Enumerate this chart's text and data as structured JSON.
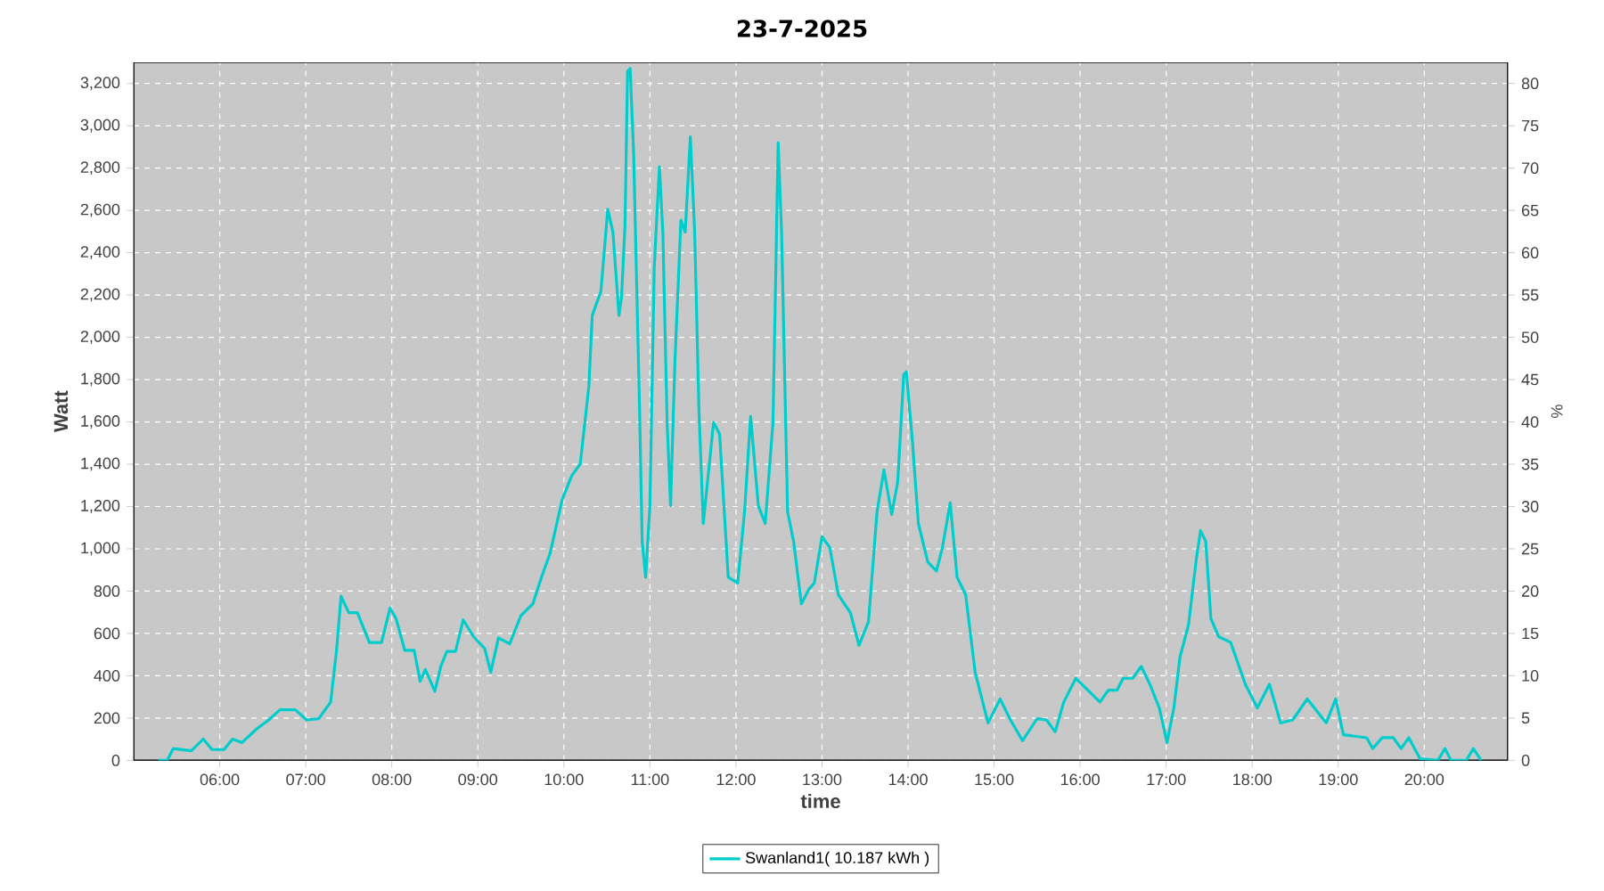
{
  "chart_data": {
    "type": "line",
    "title": "23-7-2025",
    "xlabel": "time",
    "ylabel": "Watt",
    "y2label": "%",
    "xlim": [
      5.0,
      20.97
    ],
    "ylim": [
      0,
      3300
    ],
    "y2lim": [
      0,
      82.5
    ],
    "xticks": [
      {
        "value": 6,
        "label": "06:00"
      },
      {
        "value": 7,
        "label": "07:00"
      },
      {
        "value": 8,
        "label": "08:00"
      },
      {
        "value": 9,
        "label": "09:00"
      },
      {
        "value": 10,
        "label": "10:00"
      },
      {
        "value": 11,
        "label": "11:00"
      },
      {
        "value": 12,
        "label": "12:00"
      },
      {
        "value": 13,
        "label": "13:00"
      },
      {
        "value": 14,
        "label": "14:00"
      },
      {
        "value": 15,
        "label": "15:00"
      },
      {
        "value": 16,
        "label": "16:00"
      },
      {
        "value": 17,
        "label": "17:00"
      },
      {
        "value": 18,
        "label": "18:00"
      },
      {
        "value": 19,
        "label": "19:00"
      },
      {
        "value": 20,
        "label": "20:00"
      }
    ],
    "yticks": [
      0,
      200,
      400,
      600,
      800,
      {
        "value": 1000,
        "label": "1,000"
      },
      {
        "value": 1200,
        "label": "1,200"
      },
      {
        "value": 1400,
        "label": "1,400"
      },
      {
        "value": 1600,
        "label": "1,600"
      },
      {
        "value": 1800,
        "label": "1,800"
      },
      {
        "value": 2000,
        "label": "2,000"
      },
      {
        "value": 2200,
        "label": "2,200"
      },
      {
        "value": 2400,
        "label": "2,400"
      },
      {
        "value": 2600,
        "label": "2,600"
      },
      {
        "value": 2800,
        "label": "2,800"
      },
      {
        "value": 3000,
        "label": "3,000"
      },
      {
        "value": 3200,
        "label": "3,200"
      }
    ],
    "y2ticks": [
      0,
      5,
      10,
      15,
      20,
      25,
      30,
      35,
      40,
      45,
      50,
      55,
      60,
      65,
      70,
      75,
      80
    ],
    "grid": true,
    "legend": "bottom",
    "x": [
      5.29,
      5.39,
      5.46,
      5.67,
      5.81,
      5.91,
      6.05,
      6.15,
      6.26,
      6.43,
      6.57,
      6.7,
      6.88,
      7.01,
      7.15,
      7.29,
      7.36,
      7.41,
      7.5,
      7.6,
      7.74,
      7.88,
      7.98,
      8.05,
      8.15,
      8.26,
      8.33,
      8.39,
      8.5,
      8.57,
      8.64,
      8.74,
      8.83,
      8.95,
      9.08,
      9.15,
      9.24,
      9.37,
      9.5,
      9.64,
      9.74,
      9.84,
      9.98,
      10.09,
      10.19,
      10.29,
      10.33,
      10.43,
      10.51,
      10.57,
      10.64,
      10.67,
      10.71,
      10.74,
      10.77,
      10.81,
      10.88,
      10.91,
      10.95,
      11.0,
      11.05,
      11.11,
      11.15,
      11.2,
      11.24,
      11.29,
      11.36,
      11.41,
      11.47,
      11.52,
      11.57,
      11.62,
      11.74,
      11.81,
      11.91,
      12.02,
      12.1,
      12.17,
      12.26,
      12.34,
      12.43,
      12.47,
      12.49,
      12.53,
      12.6,
      12.67,
      12.76,
      12.85,
      12.91,
      13.0,
      13.09,
      13.19,
      13.33,
      13.43,
      13.54,
      13.64,
      13.72,
      13.81,
      13.88,
      13.95,
      13.98,
      14.05,
      14.12,
      14.23,
      14.33,
      14.4,
      14.49,
      14.57,
      14.67,
      14.78,
      14.93,
      15.07,
      15.19,
      15.33,
      15.5,
      15.61,
      15.71,
      15.81,
      15.95,
      16.23,
      16.33,
      16.43,
      16.5,
      16.61,
      16.71,
      16.81,
      16.92,
      17.01,
      17.09,
      17.16,
      17.26,
      17.35,
      17.4,
      17.46,
      17.52,
      17.61,
      17.75,
      17.92,
      18.06,
      18.2,
      18.33,
      18.47,
      18.64,
      18.86,
      18.97,
      19.06,
      19.33,
      19.4,
      19.51,
      19.64,
      19.73,
      19.82,
      19.95,
      20.16,
      20.24,
      20.31,
      20.49,
      20.57,
      20.66
    ],
    "series": [
      {
        "name": "Swanland1( 10.187 kWh )",
        "color": "#00cccc",
        "values": [
          0,
          0,
          56,
          45,
          101,
          51,
          51,
          101,
          84,
          149,
          191,
          239,
          239,
          191,
          197,
          276,
          529,
          776,
          698,
          698,
          557,
          557,
          720,
          670,
          520,
          520,
          374,
          430,
          326,
          444,
          515,
          515,
          664,
          585,
          529,
          416,
          579,
          551,
          684,
          740,
          866,
          979,
          1232,
          1345,
          1401,
          1767,
          2104,
          2217,
          2605,
          2498,
          2104,
          2189,
          2526,
          3257,
          3272,
          2878,
          1654,
          1035,
          866,
          1204,
          2329,
          2807,
          2498,
          1598,
          1204,
          1879,
          2554,
          2498,
          2948,
          2498,
          1654,
          1120,
          1598,
          1542,
          866,
          838,
          1176,
          1626,
          1204,
          1120,
          1598,
          2470,
          2920,
          2498,
          1176,
          1035,
          740,
          810,
          838,
          1058,
          1007,
          782,
          698,
          543,
          655,
          1176,
          1373,
          1162,
          1317,
          1823,
          1837,
          1513,
          1120,
          937,
          895,
          1007,
          1218,
          866,
          782,
          416,
          177,
          290,
          191,
          93,
          197,
          191,
          135,
          276,
          388,
          276,
          332,
          332,
          388,
          388,
          444,
          360,
          248,
          84,
          248,
          487,
          641,
          951,
          1086,
          1035,
          670,
          585,
          557,
          360,
          248,
          360,
          177,
          191,
          290,
          177,
          290,
          121,
          107,
          56,
          107,
          107,
          56,
          107,
          8,
          0,
          56,
          0,
          0,
          56,
          0
        ]
      }
    ]
  }
}
